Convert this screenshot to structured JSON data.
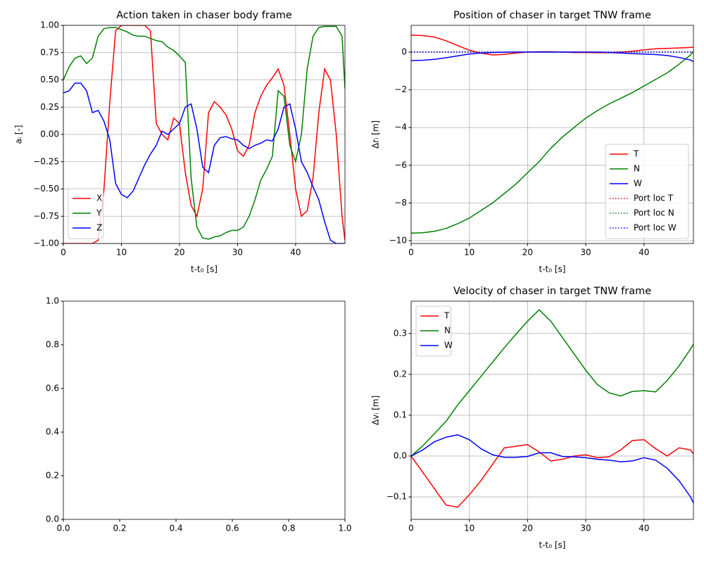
{
  "chart_data": [
    {
      "type": "line",
      "title": "Action taken in chaser body frame",
      "xlabel": "t-t₀ [s]",
      "ylabel": "aᵢ [-]",
      "xlim": [
        0,
        48.5
      ],
      "ylim": [
        -1,
        1
      ],
      "xticks": [
        0,
        10,
        20,
        30,
        40
      ],
      "yticks": [
        {
          "value": -1,
          "label": "−1.00"
        },
        {
          "value": -0.75,
          "label": "−0.75"
        },
        {
          "value": -0.5,
          "label": "−0.50"
        },
        {
          "value": -0.25,
          "label": "−0.25"
        },
        {
          "value": 0,
          "label": "0.00"
        },
        {
          "value": 0.25,
          "label": "0.25"
        },
        {
          "value": 0.5,
          "label": "0.50"
        },
        {
          "value": 0.75,
          "label": "0.75"
        },
        {
          "value": 1,
          "label": "1.00"
        }
      ],
      "grid": true,
      "legend": "lower left",
      "x": [
        0,
        1,
        2,
        3,
        4,
        5,
        6,
        7,
        8,
        9,
        10,
        11,
        12,
        13,
        14,
        15,
        16,
        17,
        18,
        19,
        20,
        21,
        22,
        23,
        24,
        25,
        26,
        27,
        28,
        29,
        30,
        31,
        32,
        33,
        34,
        35,
        36,
        37,
        38,
        39,
        40,
        41,
        42,
        43,
        44,
        45,
        46,
        47,
        48,
        48.5
      ],
      "series": [
        {
          "name": "X",
          "color": "#ff0000",
          "values": [
            -1,
            -1,
            -1,
            -1,
            -1,
            -1,
            -0.97,
            -0.5,
            0.3,
            0.95,
            1,
            1,
            1,
            1,
            1,
            0.95,
            0.1,
            0,
            -0.05,
            0.15,
            0.1,
            -0.35,
            -0.65,
            -0.75,
            -0.5,
            0.2,
            0.3,
            0.25,
            0.18,
            0.05,
            -0.15,
            -0.2,
            -0.1,
            0.2,
            0.35,
            0.45,
            0.52,
            0.6,
            0.45,
            0,
            -0.5,
            -0.75,
            -0.7,
            -0.4,
            0.2,
            0.6,
            0.5,
            0,
            -0.75,
            -0.97
          ]
        },
        {
          "name": "Y",
          "color": "#008000",
          "values": [
            0.5,
            0.62,
            0.7,
            0.72,
            0.65,
            0.7,
            0.9,
            0.97,
            0.98,
            0.98,
            0.96,
            0.94,
            0.91,
            0.9,
            0.9,
            0.88,
            0.86,
            0.85,
            0.8,
            0.77,
            0.72,
            0.66,
            -0.4,
            -0.85,
            -0.95,
            -0.96,
            -0.94,
            -0.93,
            -0.9,
            -0.88,
            -0.88,
            -0.85,
            -0.75,
            -0.6,
            -0.42,
            -0.32,
            -0.2,
            0.4,
            0.35,
            -0.1,
            -0.25,
            0,
            0.6,
            0.9,
            0.98,
            0.99,
            0.99,
            0.99,
            0.9,
            0.42
          ]
        },
        {
          "name": "Z",
          "color": "#0000ff",
          "values": [
            0.38,
            0.4,
            0.47,
            0.47,
            0.4,
            0.2,
            0.22,
            0.12,
            -0.05,
            -0.45,
            -0.55,
            -0.58,
            -0.52,
            -0.4,
            -0.28,
            -0.18,
            -0.1,
            0.03,
            0,
            0.05,
            0.1,
            0.25,
            0.28,
            0.05,
            -0.3,
            -0.35,
            -0.1,
            -0.03,
            -0.02,
            -0.04,
            -0.05,
            -0.1,
            -0.13,
            -0.1,
            -0.08,
            -0.05,
            -0.06,
            0.05,
            0.25,
            0.28,
            0.05,
            -0.25,
            -0.35,
            -0.48,
            -0.6,
            -0.8,
            -0.97,
            -1,
            -1,
            -1
          ]
        }
      ]
    },
    {
      "type": "line",
      "title": "Position of chaser in target TNW frame",
      "xlabel": "t-t₀ [s]",
      "ylabel": "Δrᵢ [m]",
      "xlim": [
        0,
        48.5
      ],
      "ylim": [
        -10.15,
        1.42
      ],
      "xticks": [
        0,
        10,
        20,
        30,
        40
      ],
      "yticks": [
        {
          "value": -10,
          "label": "−10"
        },
        {
          "value": -8,
          "label": "−8"
        },
        {
          "value": -6,
          "label": "−6"
        },
        {
          "value": -4,
          "label": "−4"
        },
        {
          "value": -2,
          "label": "−2"
        },
        0
      ],
      "grid": true,
      "legend": "lower right",
      "x": [
        0,
        2,
        4,
        6,
        8,
        10,
        12,
        14,
        16,
        18,
        20,
        22,
        24,
        26,
        28,
        30,
        32,
        34,
        36,
        38,
        40,
        42,
        44,
        46,
        48,
        48.5
      ],
      "series": [
        {
          "name": "T",
          "color": "#ff0000",
          "linestyle": "solid",
          "values": [
            0.9,
            0.88,
            0.8,
            0.6,
            0.35,
            0.1,
            -0.05,
            -0.15,
            -0.12,
            -0.05,
            0,
            0.02,
            0.02,
            0,
            -0.02,
            -0.02,
            -0.03,
            -0.03,
            0,
            0.05,
            0.12,
            0.18,
            0.2,
            0.22,
            0.25,
            0.27
          ]
        },
        {
          "name": "N",
          "color": "#008000",
          "linestyle": "solid",
          "values": [
            -9.6,
            -9.58,
            -9.5,
            -9.35,
            -9.1,
            -8.8,
            -8.4,
            -8,
            -7.5,
            -7,
            -6.4,
            -5.8,
            -5.1,
            -4.5,
            -4,
            -3.5,
            -3.1,
            -2.75,
            -2.45,
            -2.15,
            -1.8,
            -1.45,
            -1.1,
            -0.65,
            -0.15,
            0.05
          ]
        },
        {
          "name": "W",
          "color": "#0000ff",
          "linestyle": "solid",
          "values": [
            -0.45,
            -0.43,
            -0.38,
            -0.3,
            -0.2,
            -0.1,
            -0.05,
            -0.02,
            -0.01,
            0,
            0,
            0,
            0,
            0,
            0,
            0,
            0,
            -0.02,
            -0.05,
            -0.08,
            -0.1,
            -0.13,
            -0.18,
            -0.28,
            -0.42,
            -0.5
          ]
        },
        {
          "name": "Port loc T",
          "color": "#ff0000",
          "linestyle": "dotted",
          "values": [
            0,
            0,
            0,
            0,
            0,
            0,
            0,
            0,
            0,
            0,
            0,
            0,
            0,
            0,
            0,
            0,
            0,
            0,
            0,
            0,
            0,
            0,
            0,
            0,
            0,
            0
          ]
        },
        {
          "name": "Port loc N",
          "color": "#008000",
          "linestyle": "dotted",
          "values": [
            0,
            0,
            0,
            0,
            0,
            0,
            0,
            0,
            0,
            0,
            0,
            0,
            0,
            0,
            0,
            0,
            0,
            0,
            0,
            0,
            0,
            0,
            0,
            0,
            0,
            0
          ]
        },
        {
          "name": "Port loc W",
          "color": "#0000ff",
          "linestyle": "dotted",
          "values": [
            0,
            0,
            0,
            0,
            0,
            0,
            0,
            0,
            0,
            0,
            0,
            0,
            0,
            0,
            0,
            0,
            0,
            0,
            0,
            0,
            0,
            0,
            0,
            0,
            0,
            0
          ]
        }
      ]
    },
    {
      "type": "line",
      "xlim": [
        0,
        1
      ],
      "ylim": [
        0,
        1
      ],
      "xticks": [
        {
          "value": 0,
          "label": "0.0"
        },
        {
          "value": 0.2,
          "label": "0.2"
        },
        {
          "value": 0.4,
          "label": "0.4"
        },
        {
          "value": 0.6,
          "label": "0.6"
        },
        {
          "value": 0.8,
          "label": "0.8"
        },
        {
          "value": 1,
          "label": "1.0"
        }
      ],
      "yticks": [
        {
          "value": 0,
          "label": "0.0"
        },
        {
          "value": 0.2,
          "label": "0.2"
        },
        {
          "value": 0.4,
          "label": "0.4"
        },
        {
          "value": 0.6,
          "label": "0.6"
        },
        {
          "value": 0.8,
          "label": "0.8"
        },
        {
          "value": 1,
          "label": "1.0"
        }
      ],
      "grid": false
    },
    {
      "type": "line",
      "title": "Velocity of chaser in target TNW frame",
      "xlabel": "t-t₀ [s]",
      "ylabel": "Δvᵢ [m]",
      "xlim": [
        0,
        48.5
      ],
      "ylim": [
        -0.155,
        0.379
      ],
      "xticks": [
        0,
        10,
        20,
        30,
        40
      ],
      "yticks": [
        {
          "value": -0.1,
          "label": "−0.1"
        },
        {
          "value": 0,
          "label": "0.0"
        },
        0.1,
        0.2,
        0.3
      ],
      "grid": true,
      "legend": "upper left",
      "x": [
        0,
        2,
        4,
        6,
        8,
        10,
        12,
        14,
        16,
        18,
        20,
        22,
        24,
        26,
        28,
        30,
        32,
        34,
        36,
        38,
        40,
        42,
        44,
        46,
        48,
        48.5
      ],
      "series": [
        {
          "name": "T",
          "color": "#ff0000",
          "values": [
            0,
            -0.04,
            -0.08,
            -0.12,
            -0.125,
            -0.095,
            -0.06,
            -0.02,
            0.02,
            0.024,
            0.028,
            0.01,
            -0.012,
            -0.008,
            0,
            0.003,
            -0.004,
            -0.002,
            0.015,
            0.038,
            0.04,
            0.018,
            0,
            0.02,
            0.015,
            0.005
          ]
        },
        {
          "name": "N",
          "color": "#008000",
          "values": [
            0,
            0.025,
            0.055,
            0.085,
            0.125,
            0.16,
            0.195,
            0.23,
            0.265,
            0.298,
            0.33,
            0.358,
            0.33,
            0.29,
            0.25,
            0.21,
            0.175,
            0.155,
            0.147,
            0.158,
            0.16,
            0.157,
            0.185,
            0.22,
            0.262,
            0.274
          ]
        },
        {
          "name": "W",
          "color": "#0000ff",
          "values": [
            0,
            0.015,
            0.035,
            0.046,
            0.052,
            0.04,
            0.018,
            0.003,
            -0.003,
            -0.003,
            -0.001,
            0.008,
            0.008,
            -0.001,
            -0.002,
            -0.004,
            -0.008,
            -0.01,
            -0.014,
            -0.012,
            -0.004,
            -0.01,
            -0.03,
            -0.06,
            -0.1,
            -0.115
          ]
        }
      ]
    }
  ]
}
